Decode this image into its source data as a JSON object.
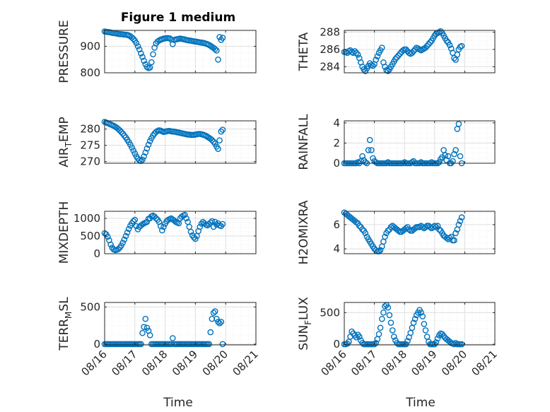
{
  "figure": {
    "title": "Figure 1 medium",
    "xlabel": "Time"
  },
  "style": {
    "marker_color": "#0072BD",
    "axis_color": "#262626",
    "grid_color": "#dfdfdf",
    "minor_grid_color": "#ececec",
    "background": "#ffffff"
  },
  "chart_data": [
    {
      "type": "scatter",
      "ylabel": "PRESSURE",
      "ylim": [
        800,
        960
      ],
      "yticks": [
        800,
        900
      ],
      "xlim": [
        0,
        5
      ],
      "grid": true,
      "minor_grid": true,
      "x": [
        0.0,
        0.05,
        0.1,
        0.15,
        0.2,
        0.25,
        0.3,
        0.35,
        0.4,
        0.45,
        0.5,
        0.55,
        0.6,
        0.65,
        0.7,
        0.75,
        0.8,
        0.85,
        0.9,
        0.95,
        1.0,
        1.05,
        1.1,
        1.15,
        1.2,
        1.25,
        1.3,
        1.35,
        1.4,
        1.45,
        1.5,
        1.55,
        1.6,
        1.65,
        1.7,
        1.75,
        1.8,
        1.85,
        1.9,
        1.95,
        2.0,
        2.05,
        2.1,
        2.15,
        2.2,
        2.25,
        2.3,
        2.35,
        2.4,
        2.45,
        2.5,
        2.55,
        2.6,
        2.65,
        2.7,
        2.75,
        2.8,
        2.85,
        2.9,
        2.95,
        3.0,
        3.05,
        3.1,
        3.15,
        3.2,
        3.25,
        3.3,
        3.35,
        3.4,
        3.45,
        3.5,
        3.55,
        3.6,
        3.65,
        3.7,
        3.75,
        3.8,
        3.85,
        3.9
      ],
      "y": [
        956,
        955,
        954,
        953,
        952,
        951,
        950,
        949,
        948,
        947,
        946,
        946,
        945,
        944,
        944,
        943,
        941,
        938,
        933,
        928,
        921,
        912,
        900,
        888,
        873,
        860,
        845,
        832,
        822,
        818,
        820,
        840,
        870,
        895,
        911,
        918,
        922,
        925,
        927,
        929,
        930,
        931,
        931,
        930,
        926,
        908,
        924,
        926,
        927,
        928,
        929,
        928,
        927,
        926,
        924,
        923,
        922,
        921,
        920,
        919,
        918,
        917,
        916,
        915,
        914,
        913,
        912,
        910,
        908,
        905,
        902,
        898,
        894,
        889,
        884,
        850,
        935,
        924,
        932
      ]
    },
    {
      "type": "scatter",
      "ylabel": "THETA",
      "ylim": [
        283.3,
        288.2
      ],
      "yticks": [
        284,
        286,
        288
      ],
      "xlim": [
        0,
        5
      ],
      "grid": true,
      "minor_grid": true,
      "x": [
        0.0,
        0.05,
        0.1,
        0.15,
        0.2,
        0.25,
        0.3,
        0.35,
        0.4,
        0.45,
        0.5,
        0.55,
        0.6,
        0.65,
        0.7,
        0.75,
        0.8,
        0.85,
        0.9,
        0.95,
        1.0,
        1.05,
        1.1,
        1.15,
        1.2,
        1.25,
        1.3,
        1.35,
        1.4,
        1.45,
        1.5,
        1.55,
        1.6,
        1.65,
        1.7,
        1.75,
        1.8,
        1.85,
        1.9,
        1.95,
        2.0,
        2.05,
        2.1,
        2.15,
        2.2,
        2.25,
        2.3,
        2.35,
        2.4,
        2.45,
        2.5,
        2.55,
        2.6,
        2.65,
        2.7,
        2.75,
        2.8,
        2.85,
        2.9,
        2.95,
        3.0,
        3.05,
        3.1,
        3.15,
        3.2,
        3.25,
        3.3,
        3.35,
        3.4,
        3.45,
        3.5,
        3.55,
        3.6,
        3.65,
        3.7,
        3.75,
        3.8,
        3.85,
        3.9
      ],
      "y": [
        285.7,
        285.7,
        285.6,
        285.8,
        285.9,
        285.7,
        285.6,
        285.8,
        285.6,
        285.4,
        285.0,
        284.5,
        284.0,
        283.7,
        283.5,
        283.8,
        284.1,
        284.4,
        284.2,
        284.1,
        284.3,
        284.8,
        285.2,
        285.6,
        285.9,
        286.2,
        284.5,
        284.0,
        283.6,
        283.5,
        283.7,
        284.0,
        284.3,
        284.6,
        284.9,
        285.1,
        285.3,
        285.5,
        285.7,
        285.9,
        286.0,
        286.0,
        285.8,
        285.6,
        285.5,
        285.6,
        285.8,
        286.0,
        286.2,
        286.1,
        286.0,
        285.9,
        286.0,
        286.1,
        286.2,
        286.4,
        286.6,
        286.8,
        287.0,
        287.3,
        287.6,
        287.8,
        287.9,
        288.0,
        288.1,
        287.9,
        287.6,
        287.3,
        287.0,
        286.8,
        286.5,
        286.1,
        285.6,
        285.0,
        284.8,
        285.4,
        286.0,
        286.3,
        286.4
      ]
    },
    {
      "type": "scatter",
      "ylabel": "AIR_TEMP",
      "ylim": [
        269.5,
        282.5
      ],
      "yticks": [
        270,
        275,
        280
      ],
      "xlim": [
        0,
        5
      ],
      "grid": true,
      "minor_grid": true,
      "x": [
        0.0,
        0.05,
        0.1,
        0.15,
        0.2,
        0.25,
        0.3,
        0.35,
        0.4,
        0.45,
        0.5,
        0.55,
        0.6,
        0.65,
        0.7,
        0.75,
        0.8,
        0.85,
        0.9,
        0.95,
        1.0,
        1.05,
        1.1,
        1.15,
        1.2,
        1.25,
        1.3,
        1.35,
        1.4,
        1.45,
        1.5,
        1.55,
        1.6,
        1.65,
        1.7,
        1.75,
        1.8,
        1.85,
        1.9,
        1.95,
        2.0,
        2.05,
        2.1,
        2.15,
        2.2,
        2.25,
        2.3,
        2.35,
        2.4,
        2.45,
        2.5,
        2.55,
        2.6,
        2.65,
        2.7,
        2.75,
        2.8,
        2.85,
        2.9,
        2.95,
        3.0,
        3.05,
        3.1,
        3.15,
        3.2,
        3.25,
        3.3,
        3.35,
        3.4,
        3.45,
        3.5,
        3.55,
        3.6,
        3.65,
        3.7,
        3.75,
        3.8,
        3.85,
        3.9
      ],
      "y": [
        282.2,
        282.0,
        281.8,
        281.6,
        281.4,
        281.2,
        281.0,
        280.7,
        280.4,
        280.0,
        279.6,
        279.1,
        278.6,
        278.0,
        277.4,
        276.7,
        276.0,
        275.2,
        274.3,
        273.4,
        272.5,
        271.6,
        270.9,
        270.4,
        270.2,
        270.6,
        271.6,
        272.8,
        274.0,
        275.2,
        276.3,
        277.2,
        278.0,
        278.6,
        279.1,
        279.4,
        279.6,
        279.5,
        279.3,
        279.1,
        279.2,
        279.3,
        279.4,
        279.4,
        279.3,
        279.2,
        279.2,
        279.1,
        279.0,
        278.9,
        278.8,
        278.7,
        278.6,
        278.5,
        278.4,
        278.3,
        278.3,
        278.2,
        278.2,
        278.2,
        278.3,
        278.4,
        278.5,
        278.5,
        278.4,
        278.3,
        278.1,
        277.9,
        277.6,
        277.3,
        277.0,
        276.6,
        276.1,
        275.5,
        274.6,
        273.9,
        276.5,
        279.2,
        279.8
      ]
    },
    {
      "type": "scatter",
      "ylabel": "RAINFALL",
      "ylim": [
        0,
        4.2
      ],
      "yticks": [
        0,
        2,
        4
      ],
      "xlim": [
        0,
        5
      ],
      "grid": true,
      "minor_grid": true,
      "x": [
        0.0,
        0.05,
        0.1,
        0.15,
        0.2,
        0.25,
        0.3,
        0.35,
        0.4,
        0.45,
        0.5,
        0.55,
        0.6,
        0.65,
        0.7,
        0.75,
        0.8,
        0.85,
        0.9,
        0.95,
        1.0,
        1.05,
        1.1,
        1.15,
        1.2,
        1.25,
        1.3,
        1.35,
        1.4,
        1.45,
        1.5,
        1.55,
        1.6,
        1.65,
        1.7,
        1.75,
        1.8,
        1.85,
        1.9,
        1.95,
        2.0,
        2.05,
        2.1,
        2.15,
        2.2,
        2.25,
        2.3,
        2.35,
        2.4,
        2.45,
        2.5,
        2.55,
        2.6,
        2.65,
        2.7,
        2.75,
        2.8,
        2.85,
        2.9,
        2.95,
        3.0,
        3.05,
        3.1,
        3.15,
        3.2,
        3.25,
        3.3,
        3.35,
        3.4,
        3.45,
        3.5,
        3.55,
        3.6,
        3.65,
        3.7,
        3.75,
        3.8,
        3.85,
        3.9
      ],
      "y": [
        0,
        0,
        0,
        0,
        0,
        0,
        0,
        0,
        0,
        0.1,
        0,
        0.2,
        0.7,
        0.3,
        0.1,
        0,
        1.3,
        2.3,
        1.3,
        0.5,
        0.2,
        0.1,
        0,
        0,
        0,
        0,
        0,
        0,
        0,
        0.1,
        0,
        0,
        0,
        0,
        0,
        0,
        0,
        0,
        0,
        0,
        0.1,
        0,
        0,
        0,
        0,
        0.1,
        0.2,
        0,
        0,
        0,
        0,
        0.1,
        0,
        0,
        0,
        0,
        0,
        0,
        0.1,
        0,
        0,
        0,
        0,
        0.1,
        0.4,
        0.6,
        1.3,
        0.8,
        0.3,
        0.7,
        0,
        0,
        0.2,
        0.9,
        1.3,
        3.4,
        3.9,
        0.7,
        0
      ]
    },
    {
      "type": "scatter",
      "ylabel": "MIXDEPTH",
      "ylim": [
        0,
        1200
      ],
      "yticks": [
        0,
        500,
        1000
      ],
      "xlim": [
        0,
        5
      ],
      "grid": true,
      "minor_grid": true,
      "x": [
        0.0,
        0.05,
        0.1,
        0.15,
        0.2,
        0.25,
        0.3,
        0.35,
        0.4,
        0.45,
        0.5,
        0.55,
        0.6,
        0.65,
        0.7,
        0.75,
        0.8,
        0.85,
        0.9,
        0.95,
        1.0,
        1.05,
        1.1,
        1.15,
        1.2,
        1.25,
        1.3,
        1.35,
        1.4,
        1.45,
        1.5,
        1.55,
        1.6,
        1.65,
        1.7,
        1.75,
        1.8,
        1.85,
        1.9,
        1.95,
        2.0,
        2.05,
        2.1,
        2.15,
        2.2,
        2.25,
        2.3,
        2.35,
        2.4,
        2.45,
        2.5,
        2.55,
        2.6,
        2.65,
        2.7,
        2.75,
        2.8,
        2.85,
        2.9,
        2.95,
        3.0,
        3.05,
        3.1,
        3.15,
        3.2,
        3.25,
        3.3,
        3.35,
        3.4,
        3.45,
        3.5,
        3.55,
        3.6,
        3.65,
        3.7,
        3.75,
        3.8,
        3.85,
        3.9
      ],
      "y": [
        580,
        550,
        480,
        380,
        260,
        170,
        120,
        100,
        110,
        130,
        170,
        230,
        310,
        400,
        500,
        600,
        700,
        790,
        860,
        920,
        960,
        780,
        690,
        760,
        800,
        830,
        860,
        880,
        900,
        990,
        1000,
        1060,
        1080,
        1050,
        1000,
        960,
        900,
        780,
        660,
        760,
        850,
        920,
        960,
        980,
        1000,
        970,
        940,
        900,
        880,
        860,
        1000,
        1050,
        1080,
        1100,
        1000,
        900,
        760,
        620,
        520,
        460,
        420,
        500,
        640,
        760,
        850,
        900,
        860,
        820,
        800,
        840,
        880,
        920,
        760,
        900,
        820,
        860,
        800,
        780,
        840
      ]
    },
    {
      "type": "scatter",
      "ylabel": "H2OMIXRA",
      "ylim": [
        3.6,
        7.1
      ],
      "yticks": [
        4,
        6
      ],
      "xlim": [
        0,
        5
      ],
      "grid": true,
      "minor_grid": true,
      "x": [
        0.0,
        0.05,
        0.1,
        0.15,
        0.2,
        0.25,
        0.3,
        0.35,
        0.4,
        0.45,
        0.5,
        0.55,
        0.6,
        0.65,
        0.7,
        0.75,
        0.8,
        0.85,
        0.9,
        0.95,
        1.0,
        1.05,
        1.1,
        1.15,
        1.2,
        1.25,
        1.3,
        1.35,
        1.4,
        1.45,
        1.5,
        1.55,
        1.6,
        1.65,
        1.7,
        1.75,
        1.8,
        1.85,
        1.9,
        1.95,
        2.0,
        2.05,
        2.1,
        2.15,
        2.2,
        2.25,
        2.3,
        2.35,
        2.4,
        2.45,
        2.5,
        2.55,
        2.6,
        2.65,
        2.7,
        2.75,
        2.8,
        2.85,
        2.9,
        2.95,
        3.0,
        3.05,
        3.1,
        3.15,
        3.2,
        3.25,
        3.3,
        3.35,
        3.4,
        3.45,
        3.5,
        3.55,
        3.6,
        3.65,
        3.7,
        3.75,
        3.8,
        3.85,
        3.9
      ],
      "y": [
        7.0,
        6.9,
        6.8,
        6.7,
        6.6,
        6.5,
        6.4,
        6.3,
        6.2,
        6.1,
        5.9,
        5.8,
        5.6,
        5.5,
        5.3,
        5.0,
        4.8,
        4.6,
        4.4,
        4.2,
        4.0,
        3.9,
        3.8,
        3.8,
        3.9,
        4.2,
        4.6,
        5.0,
        5.3,
        5.5,
        5.6,
        5.8,
        5.9,
        5.8,
        5.7,
        5.6,
        5.5,
        5.4,
        5.4,
        5.5,
        5.6,
        5.7,
        5.8,
        5.6,
        5.5,
        5.5,
        5.6,
        5.7,
        5.8,
        5.8,
        5.8,
        5.9,
        5.8,
        5.7,
        5.8,
        5.9,
        5.9,
        5.8,
        5.7,
        5.8,
        5.9,
        5.8,
        5.9,
        5.6,
        5.5,
        5.3,
        5.1,
        5.0,
        4.9,
        4.8,
        4.9,
        5.0,
        4.7,
        4.7,
        5.3,
        5.6,
        6.0,
        6.3,
        6.6
      ]
    },
    {
      "type": "scatter",
      "ylabel": "TERR_MSL",
      "ylim": [
        -10,
        560
      ],
      "yticks": [
        0,
        500
      ],
      "xlim": [
        0,
        5
      ],
      "grid": true,
      "minor_grid": true,
      "xticklabels": [
        "08/16",
        "08/17",
        "08/18",
        "08/19",
        "08/20",
        "08/21"
      ],
      "x": [
        0.0,
        0.05,
        0.1,
        0.15,
        0.2,
        0.25,
        0.3,
        0.35,
        0.4,
        0.45,
        0.5,
        0.55,
        0.6,
        0.65,
        0.7,
        0.75,
        0.8,
        0.85,
        0.9,
        0.95,
        1.0,
        1.05,
        1.1,
        1.15,
        1.2,
        1.25,
        1.3,
        1.35,
        1.4,
        1.45,
        1.5,
        1.55,
        1.6,
        1.65,
        1.7,
        1.75,
        1.8,
        1.85,
        1.9,
        1.95,
        2.0,
        2.05,
        2.1,
        2.15,
        2.2,
        2.25,
        2.3,
        2.35,
        2.4,
        2.45,
        2.5,
        2.55,
        2.6,
        2.65,
        2.7,
        2.75,
        2.8,
        2.85,
        2.9,
        2.95,
        3.0,
        3.05,
        3.1,
        3.15,
        3.2,
        3.25,
        3.3,
        3.35,
        3.4,
        3.45,
        3.5,
        3.55,
        3.6,
        3.65,
        3.7,
        3.75,
        3.8,
        3.85,
        3.9
      ],
      "y": [
        0,
        0,
        0,
        0,
        0,
        0,
        0,
        0,
        0,
        0,
        0,
        0,
        0,
        0,
        0,
        0,
        0,
        0,
        0,
        0,
        0,
        0,
        0,
        0,
        0,
        150,
        230,
        340,
        220,
        180,
        120,
        0,
        0,
        0,
        0,
        0,
        0,
        0,
        0,
        0,
        0,
        0,
        0,
        0,
        0,
        80,
        0,
        0,
        0,
        0,
        0,
        0,
        0,
        0,
        0,
        0,
        0,
        0,
        0,
        0,
        0,
        0,
        0,
        0,
        0,
        0,
        0,
        0,
        0,
        0,
        160,
        340,
        420,
        440,
        340,
        300,
        280,
        300,
        0
      ]
    },
    {
      "type": "scatter",
      "ylabel": "SUN_FLUX",
      "ylim": [
        -10,
        660
      ],
      "yticks": [
        0,
        500
      ],
      "xlim": [
        0,
        5
      ],
      "grid": true,
      "minor_grid": true,
      "xticklabels": [
        "08/16",
        "08/17",
        "08/18",
        "08/19",
        "08/20",
        "08/21"
      ],
      "x": [
        0.0,
        0.05,
        0.1,
        0.15,
        0.2,
        0.25,
        0.3,
        0.35,
        0.4,
        0.45,
        0.5,
        0.55,
        0.6,
        0.65,
        0.7,
        0.75,
        0.8,
        0.85,
        0.9,
        0.95,
        1.0,
        1.05,
        1.1,
        1.15,
        1.2,
        1.25,
        1.3,
        1.35,
        1.4,
        1.45,
        1.5,
        1.55,
        1.6,
        1.65,
        1.7,
        1.75,
        1.8,
        1.85,
        1.9,
        1.95,
        2.0,
        2.05,
        2.1,
        2.15,
        2.2,
        2.25,
        2.3,
        2.35,
        2.4,
        2.45,
        2.5,
        2.55,
        2.6,
        2.65,
        2.7,
        2.75,
        2.8,
        2.85,
        2.9,
        2.95,
        3.0,
        3.05,
        3.1,
        3.15,
        3.2,
        3.25,
        3.3,
        3.35,
        3.4,
        3.45,
        3.5,
        3.55,
        3.6,
        3.65,
        3.7,
        3.75,
        3.8,
        3.85,
        3.9
      ],
      "y": [
        0,
        0,
        10,
        40,
        120,
        200,
        170,
        140,
        110,
        150,
        120,
        60,
        20,
        0,
        0,
        0,
        0,
        0,
        0,
        0,
        0,
        20,
        80,
        160,
        260,
        400,
        500,
        600,
        620,
        580,
        460,
        340,
        220,
        120,
        60,
        20,
        0,
        0,
        0,
        0,
        0,
        0,
        50,
        110,
        180,
        260,
        340,
        400,
        460,
        500,
        540,
        500,
        440,
        320,
        220,
        120,
        40,
        0,
        0,
        0,
        0,
        30,
        90,
        140,
        170,
        160,
        130,
        100,
        80,
        60,
        40,
        20,
        10,
        0,
        20,
        0,
        0,
        0,
        0
      ]
    }
  ]
}
